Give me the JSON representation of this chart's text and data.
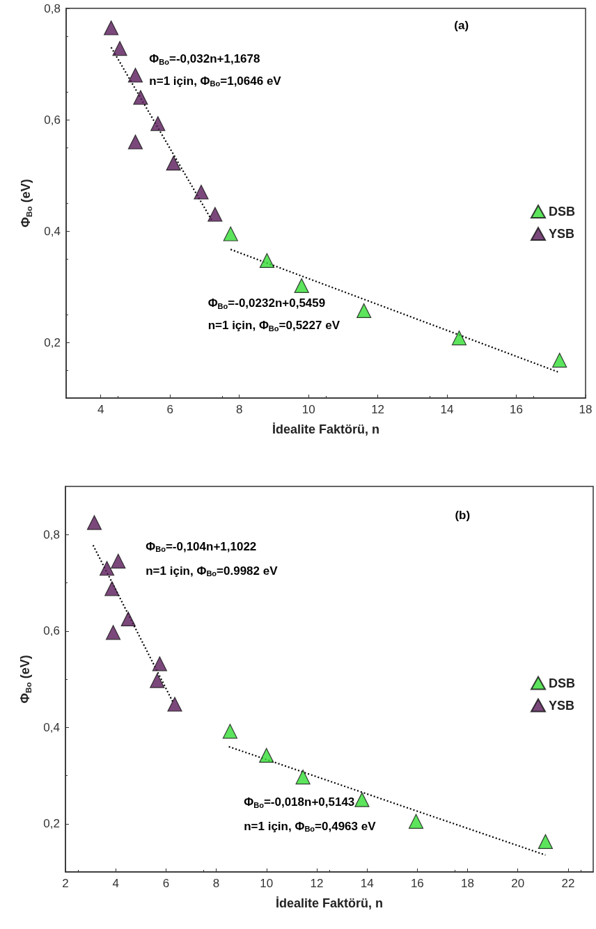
{
  "chart_data": [
    {
      "type": "scatter",
      "xlabel": "İdealite Faktörü, n",
      "ylabel": "Φ$_{Bo}$ (eV)",
      "xlim": [
        3,
        18
      ],
      "xticks": [
        4,
        6,
        8,
        10,
        12,
        14,
        16,
        18
      ],
      "ylim": [
        0.1,
        0.8
      ],
      "yticks": [
        {
          "value": 0.2,
          "label": "0,2"
        },
        {
          "value": 0.4,
          "label": "0,4"
        },
        {
          "value": 0.6,
          "label": "0,6"
        },
        {
          "value": 0.8,
          "label": "0,8"
        }
      ],
      "grid": false,
      "legend": "right",
      "marker": "triangle",
      "series": [
        {
          "name": "DSB",
          "color": "#33dd33",
          "x": [
            7.75,
            8.8,
            9.8,
            11.6,
            14.35,
            17.25
          ],
          "values": [
            0.395,
            0.347,
            0.302,
            0.257,
            0.208,
            0.168
          ]
        },
        {
          "name": "YSB",
          "color": "#5a1a5a",
          "x": [
            4.3,
            4.55,
            5.0,
            5.15,
            5.65,
            5.0,
            6.1,
            6.9,
            7.3
          ],
          "values": [
            0.765,
            0.728,
            0.68,
            0.64,
            0.593,
            0.56,
            0.522,
            0.47,
            0.43
          ]
        },
        {
          "type": "line",
          "color": "#000000",
          "line_style": "dotted",
          "marker": "none",
          "x": [
            4.3,
            7.2
          ],
          "values": [
            0.73,
            0.42
          ]
        },
        {
          "type": "line",
          "color": "#000000",
          "line_style": "dotted",
          "marker": "none",
          "x": [
            7.75,
            17.2
          ],
          "values": [
            0.367,
            0.147
          ]
        }
      ],
      "annotations": [
        "(a)",
        "Φ$_{Bo}$=-0,032n+1,1678",
        "n=1 için, Φ$_{Bo}$=1,0646 eV",
        "Φ$_{Bo}$=-0,0232n+0,5459",
        "n=1 için, Φ$_{Bo}$=0,5227 eV"
      ]
    },
    {
      "type": "scatter",
      "xlabel": "İdealite Faktörü, n",
      "ylabel": "Φ$_{Bo}$ (eV)",
      "xlim": [
        2,
        23
      ],
      "xticks": [
        2,
        4,
        6,
        8,
        10,
        12,
        14,
        16,
        18,
        20,
        22
      ],
      "ylim": [
        0.1,
        0.9
      ],
      "yticks": [
        {
          "value": 0.2,
          "label": "0,2"
        },
        {
          "value": 0.4,
          "label": "0,4"
        },
        {
          "value": 0.6,
          "label": "0,6"
        },
        {
          "value": 0.8,
          "label": "0,8"
        }
      ],
      "grid": false,
      "legend": "right",
      "marker": "triangle",
      "series": [
        {
          "name": "DSB",
          "color": "#33dd33",
          "x": [
            8.55,
            10.0,
            11.45,
            13.8,
            15.95,
            21.1
          ],
          "values": [
            0.392,
            0.342,
            0.297,
            0.25,
            0.205,
            0.163
          ]
        },
        {
          "name": "YSB",
          "color": "#5a1a5a",
          "x": [
            3.15,
            3.65,
            4.1,
            3.85,
            4.5,
            3.9,
            5.75,
            5.65,
            6.35
          ],
          "values": [
            0.825,
            0.73,
            0.745,
            0.688,
            0.625,
            0.597,
            0.532,
            0.497,
            0.448
          ]
        },
        {
          "type": "line",
          "color": "#000000",
          "line_style": "dotted",
          "marker": "none",
          "x": [
            3.1,
            6.3
          ],
          "values": [
            0.778,
            0.45
          ]
        },
        {
          "type": "line",
          "color": "#000000",
          "line_style": "dotted",
          "marker": "none",
          "x": [
            8.5,
            21.1
          ],
          "values": [
            0.36,
            0.135
          ]
        }
      ],
      "annotations": [
        "(b)",
        "Φ$_{Bo}$=-0,104n+1,1022",
        "n=1 için, Φ$_{Bo}$=0.9982 eV",
        "Φ$_{Bo}$=-0,018n+0,5143",
        "n=1 için, Φ$_{Bo}$=0,4963 eV"
      ]
    }
  ]
}
